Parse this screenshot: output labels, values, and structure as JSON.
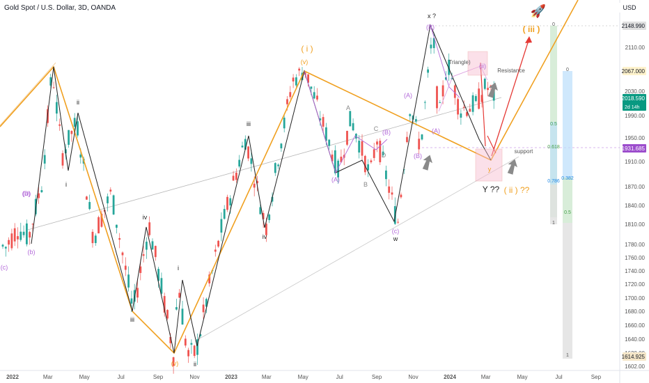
{
  "header": {
    "title": "Gold Spot / U.S. Dollar, 3D, OANDA",
    "currency": "USD"
  },
  "colors": {
    "up": "#26a69a",
    "down": "#ef5350",
    "orange": "#f0a020",
    "purple": "#b36ad9",
    "black": "#222222",
    "red": "#e53935",
    "grey_arrow": "#8a8a8a"
  },
  "chart_data": {
    "type": "candlestick",
    "title": "Gold Spot / U.S. Dollar, 3D, OANDA",
    "ylim": [
      1602,
      2150
    ],
    "x_ticks": [
      "2022",
      "Mar",
      "May",
      "Jul",
      "Sep",
      "Nov",
      "2023",
      "Mar",
      "May",
      "Jul",
      "Sep",
      "Nov",
      "2024",
      "Mar",
      "May",
      "Jul",
      "Sep"
    ],
    "y_ticks": [
      1602,
      1620,
      1640,
      1660,
      1680,
      1700,
      1720,
      1740,
      1760,
      1780,
      1810,
      1840,
      1870,
      1910,
      1950,
      1990,
      2030,
      2067,
      2110,
      2148.99
    ],
    "price_labels": [
      {
        "text": "2148.990",
        "value": 2148.99
      },
      {
        "text": "2067.000",
        "value": 2067
      },
      {
        "text": "2018.590",
        "sub": "2d 14h",
        "value": 2018.59
      },
      {
        "text": "1931.685",
        "value": 1931.685
      },
      {
        "text": "1614.925",
        "value": 1614.925
      }
    ],
    "price_path": [
      [
        "2021-11-20",
        1790
      ],
      [
        "2021-12-20",
        1775
      ],
      [
        "2022-01-10",
        1805
      ],
      [
        "2022-01-28",
        1790
      ],
      [
        "2022-02-20",
        1880
      ],
      [
        "2022-03-08",
        2070
      ],
      [
        "2022-03-25",
        1920
      ],
      [
        "2022-04-18",
        1980
      ],
      [
        "2022-05-16",
        1790
      ],
      [
        "2022-06-15",
        1860
      ],
      [
        "2022-07-21",
        1680
      ],
      [
        "2022-08-17",
        1810
      ],
      [
        "2022-09-28",
        1614
      ],
      [
        "2022-10-04",
        1730
      ],
      [
        "2022-10-20",
        1615
      ],
      [
        "2022-11-03",
        1620
      ],
      [
        "2022-12-15",
        1800
      ],
      [
        "2023-01-25",
        1950
      ],
      [
        "2023-02-28",
        1804
      ],
      [
        "2023-04-13",
        2049
      ],
      [
        "2023-05-04",
        2070
      ],
      [
        "2023-06-29",
        1893
      ],
      [
        "2023-07-20",
        1985
      ],
      [
        "2023-08-21",
        1885
      ],
      [
        "2023-09-01",
        1950
      ],
      [
        "2023-10-06",
        1810
      ],
      [
        "2023-10-27",
        2010
      ],
      [
        "2023-11-13",
        1932
      ],
      [
        "2023-12-04",
        2140
      ],
      [
        "2023-12-13",
        1975
      ],
      [
        "2023-12-28",
        2085
      ],
      [
        "2024-01-17",
        2000
      ],
      [
        "2024-02-14",
        2008
      ],
      [
        "2024-03-01",
        2040
      ],
      [
        "2024-03-18",
        2018.59
      ]
    ],
    "wave_labels": [
      "(b)",
      "(a)",
      "(c)",
      "(D)",
      "ii",
      "i",
      "iii",
      "iv",
      "(v)",
      "ii",
      "i",
      "iii",
      "iv",
      "( i )",
      "(v)",
      "(A)",
      "A",
      "B",
      "C",
      "D",
      "(B)",
      "(c)",
      "w",
      "(A)",
      "(B)",
      "x ?",
      "(A)",
      "(B)",
      "y",
      "Y ??",
      "( ii ) ??",
      "( iii )",
      "Triangle)",
      "Resistance",
      "support",
      "(ii)"
    ],
    "fib_ratios": [
      "0",
      "0.5",
      "0.618",
      "0.786",
      "1",
      "0",
      "0.382",
      "0.5",
      "1"
    ]
  }
}
